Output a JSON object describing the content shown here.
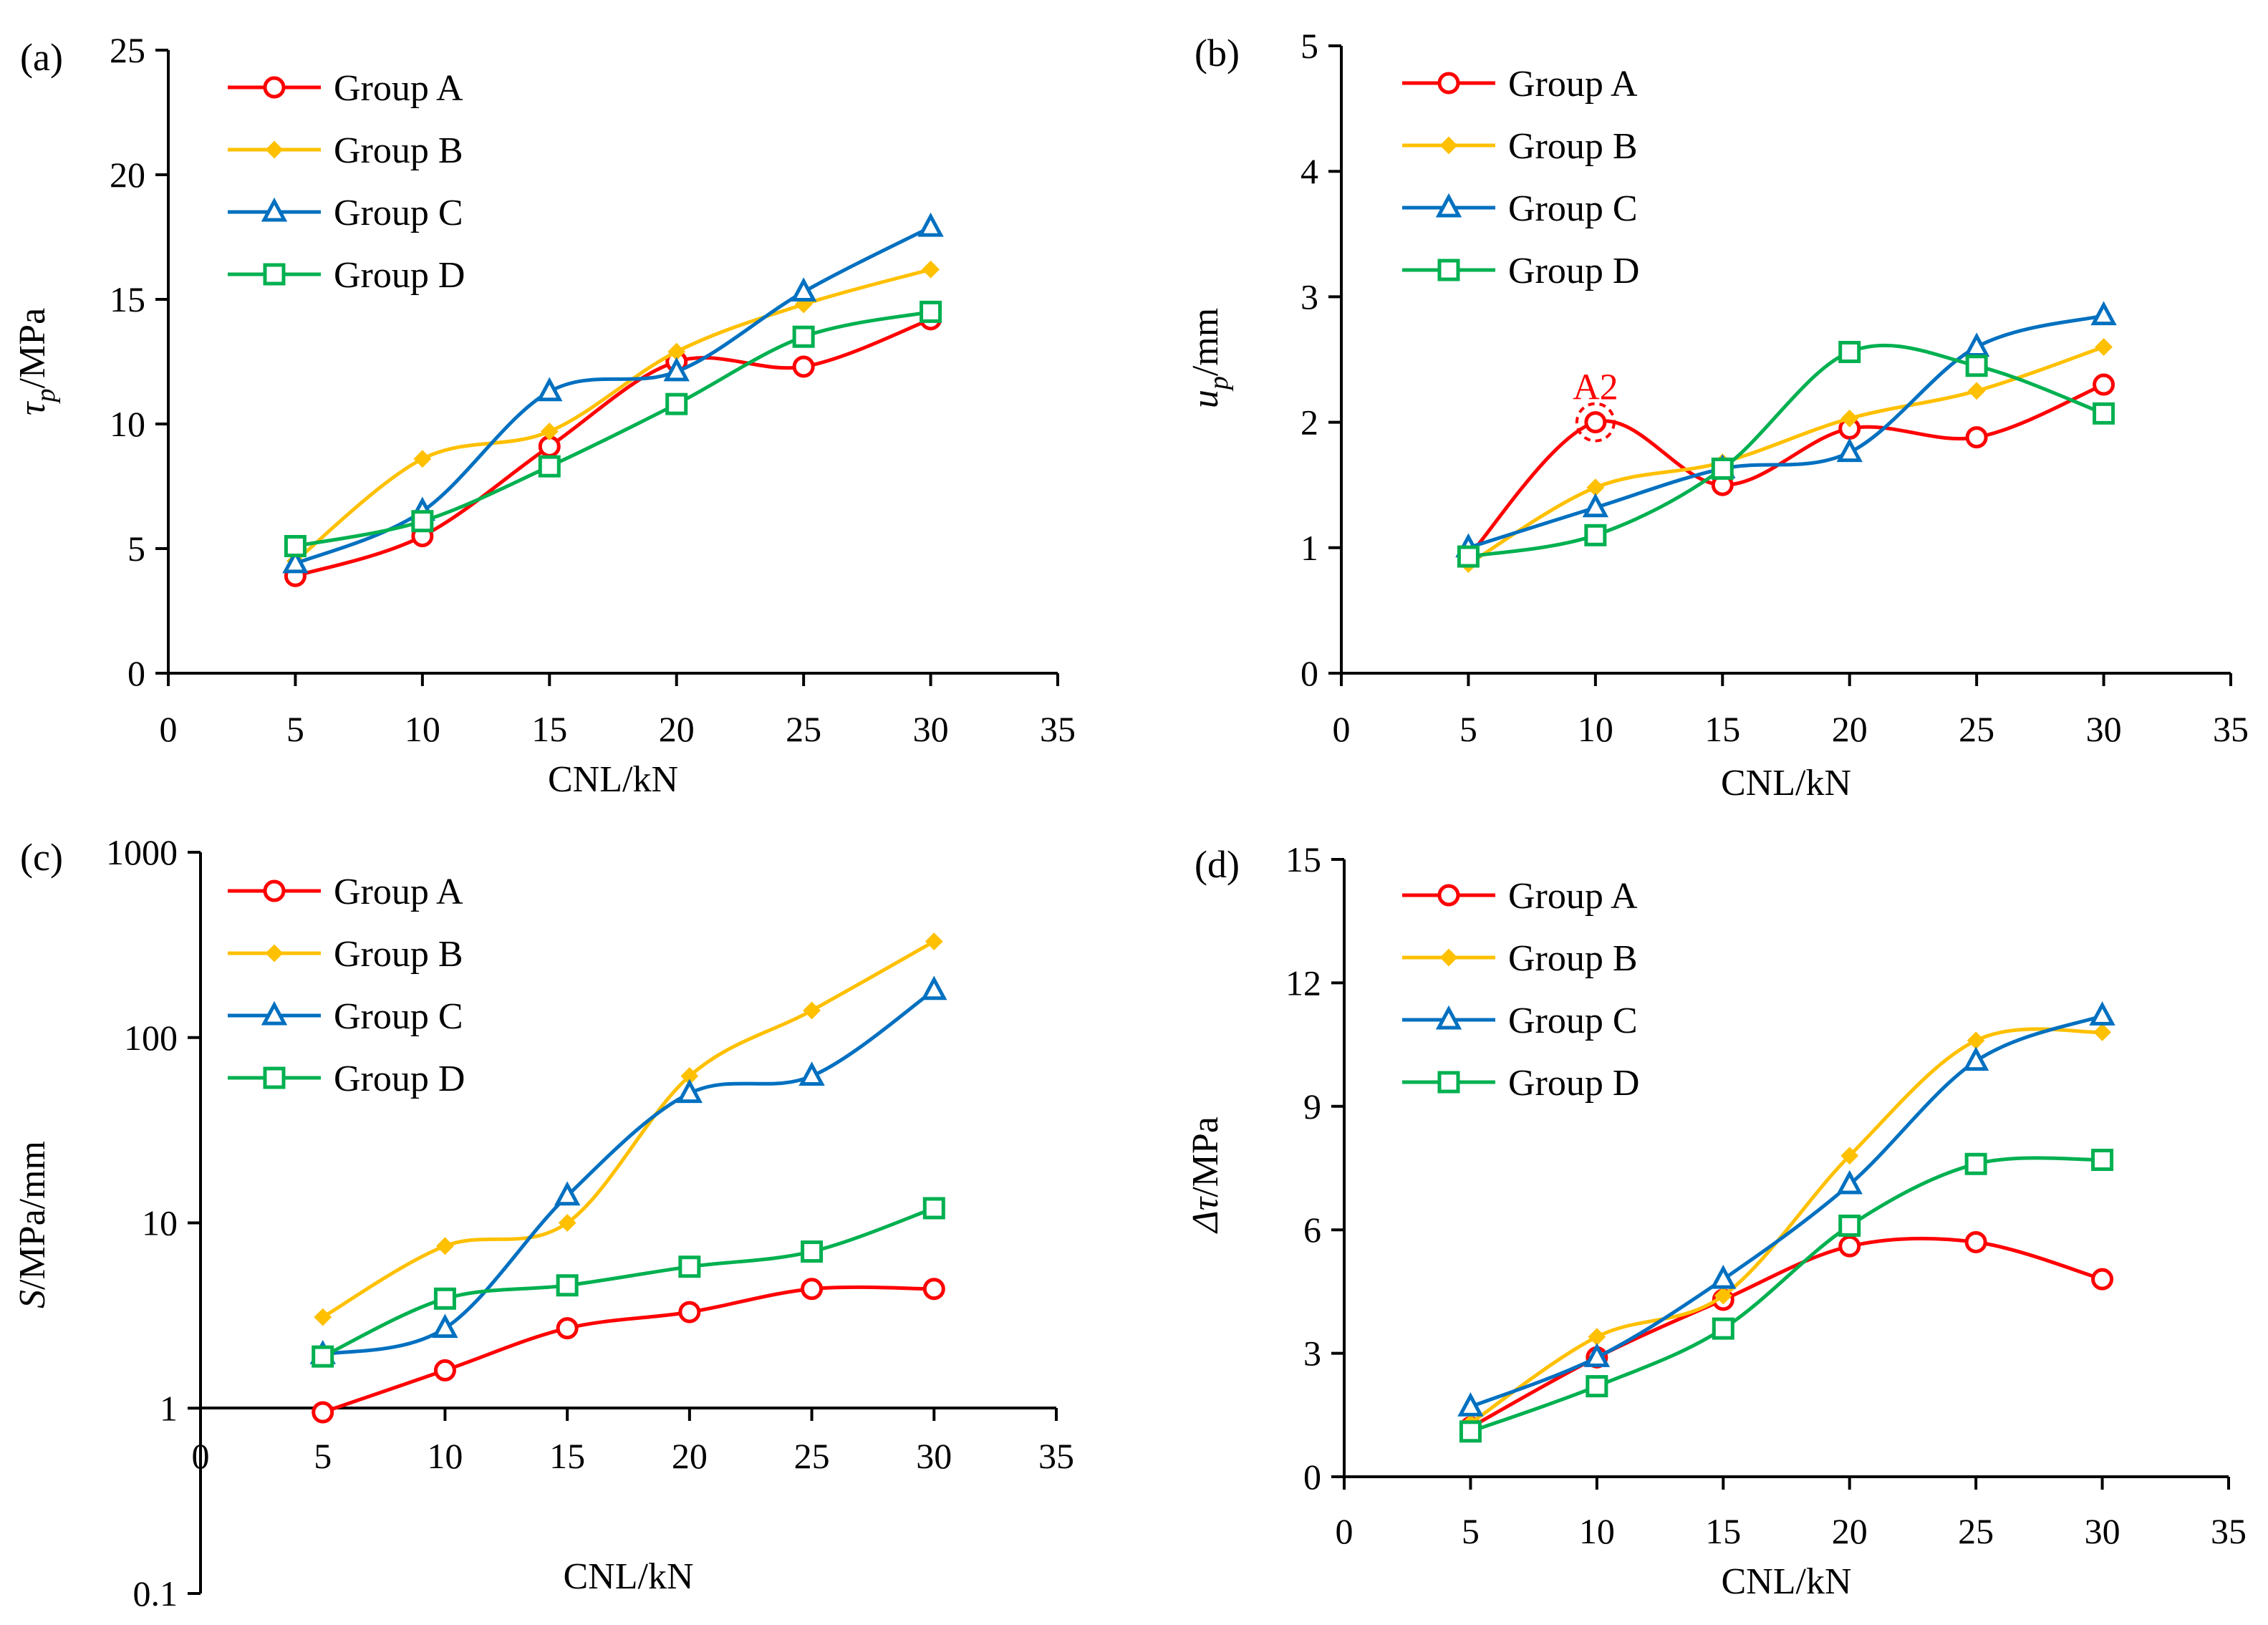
{
  "chart_data": [
    {
      "type": "line",
      "panel_label": "(a)",
      "xlabel": "CNL/kN",
      "ylabel": "τp/MPa",
      "ylabel_parts": {
        "main": "τ",
        "sub": "p",
        "unit": "/MPa"
      },
      "xlim": [
        0,
        35
      ],
      "ylim": [
        0,
        25
      ],
      "xticks": [
        0,
        5,
        10,
        15,
        20,
        25,
        30,
        35
      ],
      "yticks": [
        0,
        5,
        10,
        15,
        20,
        25
      ],
      "yscale": "linear",
      "x": [
        5,
        10,
        15,
        20,
        25,
        30
      ],
      "legend_position": "top-left",
      "series": [
        {
          "name": "Group A",
          "color": "#ff0000",
          "marker": "circle",
          "values": [
            3.9,
            5.5,
            9.1,
            12.5,
            12.3,
            14.2
          ]
        },
        {
          "name": "Group B",
          "color": "#ffc000",
          "marker": "diamond",
          "values": [
            4.5,
            8.6,
            9.7,
            12.9,
            14.8,
            16.2
          ]
        },
        {
          "name": "Group C",
          "color": "#0070c0",
          "marker": "triangle",
          "values": [
            4.4,
            6.5,
            11.3,
            12.1,
            15.3,
            17.9
          ]
        },
        {
          "name": "Group D",
          "color": "#00b050",
          "marker": "square",
          "values": [
            5.1,
            6.1,
            8.3,
            10.8,
            13.5,
            14.5
          ]
        }
      ]
    },
    {
      "type": "line",
      "panel_label": "(b)",
      "xlabel": "CNL/kN",
      "ylabel": "up/mm",
      "ylabel_parts": {
        "main": "u",
        "sub": "p",
        "unit": "/mm"
      },
      "xlim": [
        0,
        35
      ],
      "ylim": [
        0,
        5
      ],
      "xticks": [
        0,
        5,
        10,
        15,
        20,
        25,
        30,
        35
      ],
      "yticks": [
        0,
        1,
        2,
        3,
        4,
        5
      ],
      "yscale": "linear",
      "x": [
        5,
        10,
        15,
        20,
        25,
        30
      ],
      "legend_position": "top-left",
      "annotation": {
        "text": "A2",
        "x": 10,
        "y": 2.0,
        "color": "#ff0000"
      },
      "series": [
        {
          "name": "Group A",
          "color": "#ff0000",
          "marker": "circle",
          "values": [
            0.93,
            2.0,
            1.5,
            1.95,
            1.88,
            2.3
          ]
        },
        {
          "name": "Group B",
          "color": "#ffc000",
          "marker": "diamond",
          "values": [
            0.87,
            1.48,
            1.68,
            2.03,
            2.25,
            2.6
          ]
        },
        {
          "name": "Group C",
          "color": "#0070c0",
          "marker": "triangle",
          "values": [
            1.0,
            1.32,
            1.63,
            1.76,
            2.6,
            2.85
          ]
        },
        {
          "name": "Group D",
          "color": "#00b050",
          "marker": "square",
          "values": [
            0.93,
            1.1,
            1.63,
            2.56,
            2.45,
            2.07
          ]
        }
      ]
    },
    {
      "type": "line",
      "panel_label": "(c)",
      "xlabel": "CNL/kN",
      "ylabel": "S/MPa/mm",
      "ylabel_parts": {
        "main": "S",
        "sub": "",
        "unit": "/MPa/mm"
      },
      "xlim": [
        0,
        35
      ],
      "ylim": [
        0.1,
        1000
      ],
      "xticks": [
        0,
        5,
        10,
        15,
        20,
        25,
        30,
        35
      ],
      "yticks": [
        0.1,
        1,
        10,
        100,
        1000
      ],
      "ytick_labels": [
        "0.1",
        "1",
        "10",
        "100",
        "1000"
      ],
      "yscale": "log",
      "x_axis_crosses_at": 1,
      "x": [
        5,
        10,
        15,
        20,
        25,
        30
      ],
      "legend_position": "top-left",
      "series": [
        {
          "name": "Group A",
          "color": "#ff0000",
          "marker": "circle",
          "values": [
            0.95,
            1.6,
            2.7,
            3.3,
            4.4,
            4.4
          ]
        },
        {
          "name": "Group B",
          "color": "#ffc000",
          "marker": "diamond",
          "values": [
            3.1,
            7.5,
            10,
            62,
            140,
            330
          ]
        },
        {
          "name": "Group C",
          "color": "#0070c0",
          "marker": "triangle",
          "values": [
            1.95,
            2.7,
            14,
            50,
            62,
            180
          ]
        },
        {
          "name": "Group D",
          "color": "#00b050",
          "marker": "square",
          "values": [
            1.9,
            3.9,
            4.6,
            5.8,
            7.0,
            12
          ]
        }
      ]
    },
    {
      "type": "line",
      "panel_label": "(d)",
      "xlabel": "CNL/kN",
      "ylabel": "Δτ/MPa",
      "ylabel_parts": {
        "main": "Δτ",
        "sub": "",
        "unit": "/MPa"
      },
      "xlim": [
        0,
        35
      ],
      "ylim": [
        0,
        15
      ],
      "xticks": [
        0,
        5,
        10,
        15,
        20,
        25,
        30,
        35
      ],
      "yticks": [
        0,
        3,
        6,
        9,
        12,
        15
      ],
      "yscale": "linear",
      "x": [
        5,
        10,
        15,
        20,
        25,
        30
      ],
      "legend_position": "top-left",
      "series": [
        {
          "name": "Group A",
          "color": "#ff0000",
          "marker": "circle",
          "values": [
            1.2,
            2.9,
            4.3,
            5.6,
            5.7,
            4.8
          ]
        },
        {
          "name": "Group B",
          "color": "#ffc000",
          "marker": "diamond",
          "values": [
            1.3,
            3.4,
            4.4,
            7.8,
            10.6,
            10.8
          ]
        },
        {
          "name": "Group C",
          "color": "#0070c0",
          "marker": "triangle",
          "values": [
            1.7,
            2.9,
            4.8,
            7.1,
            10.1,
            11.2
          ]
        },
        {
          "name": "Group D",
          "color": "#00b050",
          "marker": "square",
          "values": [
            1.1,
            2.2,
            3.6,
            6.1,
            7.6,
            7.7
          ]
        }
      ]
    }
  ]
}
